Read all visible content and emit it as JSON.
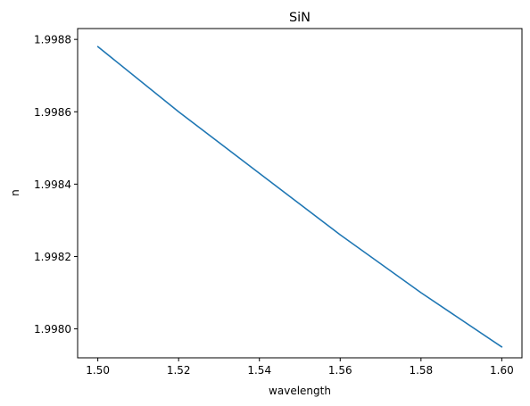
{
  "chart_data": {
    "type": "line",
    "title": "SiN",
    "xlabel": "wavelength",
    "ylabel": "n",
    "xlim": [
      1.495,
      1.605
    ],
    "ylim": [
      1.99792,
      1.99883
    ],
    "xticks": [
      1.5,
      1.52,
      1.54,
      1.56,
      1.58,
      1.6
    ],
    "xtick_labels": [
      "1.50",
      "1.52",
      "1.54",
      "1.56",
      "1.58",
      "1.60"
    ],
    "yticks": [
      1.998,
      1.9982,
      1.9984,
      1.9986,
      1.9988
    ],
    "ytick_labels": [
      "1.9980",
      "1.9982",
      "1.9984",
      "1.9986",
      "1.9988"
    ],
    "grid": false,
    "legend": "none",
    "series": [
      {
        "color": "#1f77b4",
        "x": [
          1.5,
          1.52,
          1.54,
          1.56,
          1.58,
          1.6
        ],
        "y": [
          1.99878,
          1.9986,
          1.99843,
          1.99826,
          1.9981,
          1.99795
        ]
      }
    ]
  }
}
